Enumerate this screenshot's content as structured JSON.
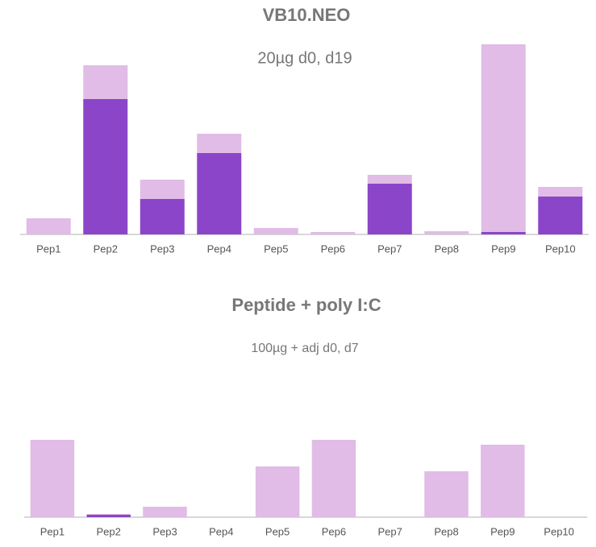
{
  "chart_data": [
    {
      "type": "bar",
      "stacked": true,
      "title": "VB10.NEO",
      "subtitle": "20µg d0, d19",
      "categories": [
        "Pep1",
        "Pep2",
        "Pep3",
        "Pep4",
        "Pep5",
        "Pep6",
        "Pep7",
        "Pep8",
        "Pep9",
        "Pep10"
      ],
      "series": [
        {
          "color": "#8b45c9",
          "values": [
            0,
            168,
            44,
            101,
            0,
            0,
            63,
            0,
            3,
            47
          ]
        },
        {
          "color": "#e0bce6",
          "values": [
            20,
            42,
            24,
            24,
            8,
            3,
            11,
            4,
            233,
            12
          ]
        }
      ],
      "ylim": [
        0,
        240
      ]
    },
    {
      "type": "bar",
      "stacked": true,
      "title": "Peptide + poly I:C",
      "subtitle": "100µg + adj d0, d7",
      "categories": [
        "Pep1",
        "Pep2",
        "Pep3",
        "Pep4",
        "Pep5",
        "Pep6",
        "Pep7",
        "Pep8",
        "Pep9",
        "Pep10"
      ],
      "series": [
        {
          "color": "#8b45c9",
          "values": [
            0,
            3,
            0,
            0,
            0,
            0,
            0,
            0,
            0,
            0
          ]
        },
        {
          "color": "#e0bce6",
          "values": [
            96,
            1,
            13,
            0,
            63,
            96,
            0,
            57,
            90,
            0
          ]
        }
      ],
      "ylim": [
        0,
        240
      ]
    }
  ]
}
